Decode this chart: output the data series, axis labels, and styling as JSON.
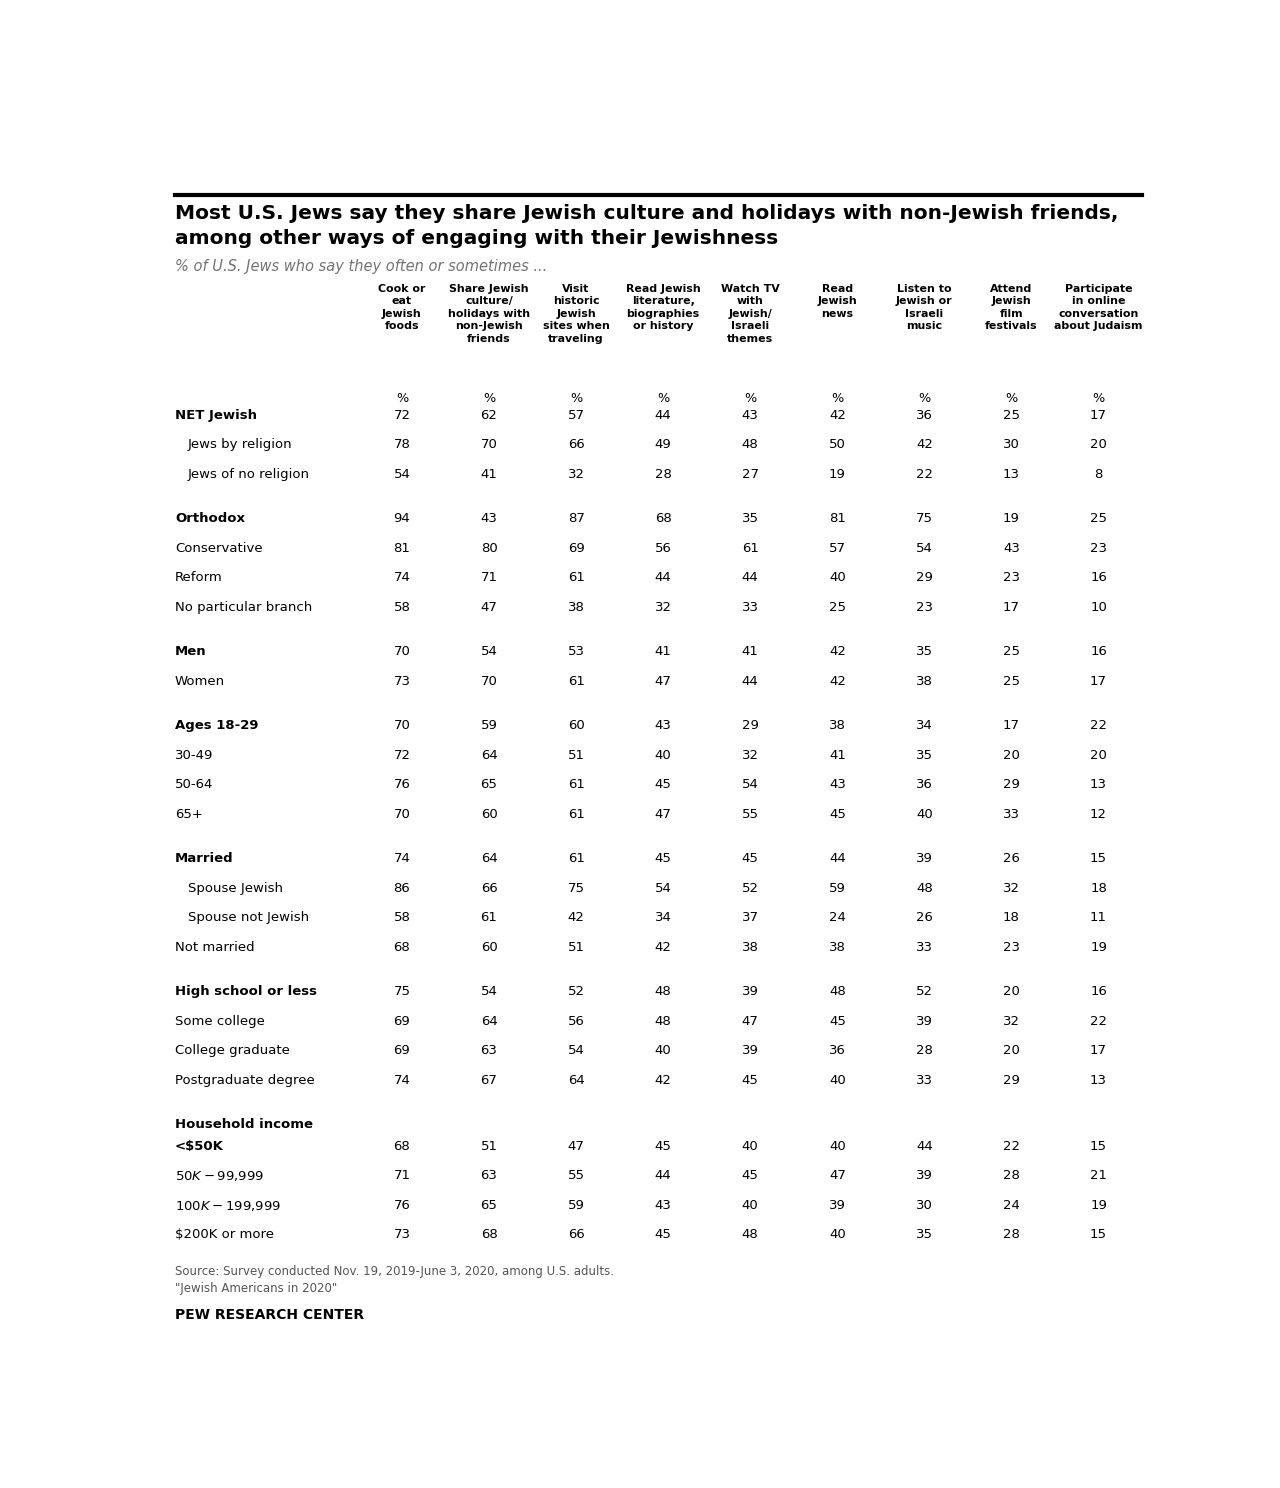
{
  "title_line1": "Most U.S. Jews say they share Jewish culture and holidays with non-Jewish friends,",
  "title_line2": "among other ways of engaging with their Jewishness",
  "subtitle": "% of U.S. Jews who say they often or sometimes ...",
  "col_headers": [
    "Cook or\neat\nJewish\nfoods",
    "Share Jewish\nculture/\nholidays with\nnon-Jewish\nfriends",
    "Visit\nhistoric\nJewish\nsites when\ntraveling",
    "Read Jewish\nliterature,\nbiographies\nor history",
    "Watch TV\nwith\nJewish/\nIsraeli\nthemes",
    "Read\nJewish\nnews",
    "Listen to\nJewish or\nIsraeli\nmusic",
    "Attend\nJewish\nfilm\nfestivals",
    "Participate\nin online\nconversation\nabout Judaism"
  ],
  "rows": [
    {
      "label": "NET Jewish",
      "indent": 0,
      "bold": true,
      "values": [
        72,
        62,
        57,
        44,
        43,
        42,
        36,
        25,
        17
      ],
      "separator_above": false
    },
    {
      "label": "Jews by religion",
      "indent": 1,
      "bold": false,
      "values": [
        78,
        70,
        66,
        49,
        48,
        50,
        42,
        30,
        20
      ],
      "separator_above": false
    },
    {
      "label": "Jews of no religion",
      "indent": 1,
      "bold": false,
      "values": [
        54,
        41,
        32,
        28,
        27,
        19,
        22,
        13,
        8
      ],
      "separator_above": false
    },
    {
      "label": "Orthodox",
      "indent": 0,
      "bold": true,
      "values": [
        94,
        43,
        87,
        68,
        35,
        81,
        75,
        19,
        25
      ],
      "separator_above": true
    },
    {
      "label": "Conservative",
      "indent": 0,
      "bold": false,
      "values": [
        81,
        80,
        69,
        56,
        61,
        57,
        54,
        43,
        23
      ],
      "separator_above": false
    },
    {
      "label": "Reform",
      "indent": 0,
      "bold": false,
      "values": [
        74,
        71,
        61,
        44,
        44,
        40,
        29,
        23,
        16
      ],
      "separator_above": false
    },
    {
      "label": "No particular branch",
      "indent": 0,
      "bold": false,
      "values": [
        58,
        47,
        38,
        32,
        33,
        25,
        23,
        17,
        10
      ],
      "separator_above": false
    },
    {
      "label": "Men",
      "indent": 0,
      "bold": true,
      "values": [
        70,
        54,
        53,
        41,
        41,
        42,
        35,
        25,
        16
      ],
      "separator_above": true
    },
    {
      "label": "Women",
      "indent": 0,
      "bold": false,
      "values": [
        73,
        70,
        61,
        47,
        44,
        42,
        38,
        25,
        17
      ],
      "separator_above": false
    },
    {
      "label": "Ages 18-29",
      "indent": 0,
      "bold": true,
      "values": [
        70,
        59,
        60,
        43,
        29,
        38,
        34,
        17,
        22
      ],
      "separator_above": true
    },
    {
      "label": "30-49",
      "indent": 0,
      "bold": false,
      "values": [
        72,
        64,
        51,
        40,
        32,
        41,
        35,
        20,
        20
      ],
      "separator_above": false
    },
    {
      "label": "50-64",
      "indent": 0,
      "bold": false,
      "values": [
        76,
        65,
        61,
        45,
        54,
        43,
        36,
        29,
        13
      ],
      "separator_above": false
    },
    {
      "label": "65+",
      "indent": 0,
      "bold": false,
      "values": [
        70,
        60,
        61,
        47,
        55,
        45,
        40,
        33,
        12
      ],
      "separator_above": false
    },
    {
      "label": "Married",
      "indent": 0,
      "bold": true,
      "values": [
        74,
        64,
        61,
        45,
        45,
        44,
        39,
        26,
        15
      ],
      "separator_above": true
    },
    {
      "label": "Spouse Jewish",
      "indent": 1,
      "bold": false,
      "values": [
        86,
        66,
        75,
        54,
        52,
        59,
        48,
        32,
        18
      ],
      "separator_above": false
    },
    {
      "label": "Spouse not Jewish",
      "indent": 1,
      "bold": false,
      "values": [
        58,
        61,
        42,
        34,
        37,
        24,
        26,
        18,
        11
      ],
      "separator_above": false
    },
    {
      "label": "Not married",
      "indent": 0,
      "bold": false,
      "values": [
        68,
        60,
        51,
        42,
        38,
        38,
        33,
        23,
        19
      ],
      "separator_above": false
    },
    {
      "label": "High school or less",
      "indent": 0,
      "bold": true,
      "values": [
        75,
        54,
        52,
        48,
        39,
        48,
        52,
        20,
        16
      ],
      "separator_above": true
    },
    {
      "label": "Some college",
      "indent": 0,
      "bold": false,
      "values": [
        69,
        64,
        56,
        48,
        47,
        45,
        39,
        32,
        22
      ],
      "separator_above": false
    },
    {
      "label": "College graduate",
      "indent": 0,
      "bold": false,
      "values": [
        69,
        63,
        54,
        40,
        39,
        36,
        28,
        20,
        17
      ],
      "separator_above": false
    },
    {
      "label": "Postgraduate degree",
      "indent": 0,
      "bold": false,
      "values": [
        74,
        67,
        64,
        42,
        45,
        40,
        33,
        29,
        13
      ],
      "separator_above": false
    },
    {
      "label": "Household income\n<$50K",
      "indent": 0,
      "bold": true,
      "values": [
        68,
        51,
        47,
        45,
        40,
        40,
        44,
        22,
        15
      ],
      "separator_above": true
    },
    {
      "label": "$50K-$99,999",
      "indent": 0,
      "bold": false,
      "values": [
        71,
        63,
        55,
        44,
        45,
        47,
        39,
        28,
        21
      ],
      "separator_above": false
    },
    {
      "label": "$100K-$199,999",
      "indent": 0,
      "bold": false,
      "values": [
        76,
        65,
        59,
        43,
        40,
        39,
        30,
        24,
        19
      ],
      "separator_above": false
    },
    {
      "label": "$200K or more",
      "indent": 0,
      "bold": false,
      "values": [
        73,
        68,
        66,
        45,
        48,
        40,
        35,
        28,
        15
      ],
      "separator_above": false
    }
  ],
  "source_text": "Source: Survey conducted Nov. 19, 2019-June 3, 2020, among U.S. adults.\n\"Jewish Americans in 2020\"",
  "footer_text": "PEW RESEARCH CENTER",
  "bg_color": "#ffffff",
  "title_color": "#000000",
  "subtitle_color": "#737373",
  "header_color": "#000000",
  "row_label_color": "#000000",
  "value_color": "#000000",
  "separator_color": "#cccccc",
  "top_border_color": "#000000"
}
